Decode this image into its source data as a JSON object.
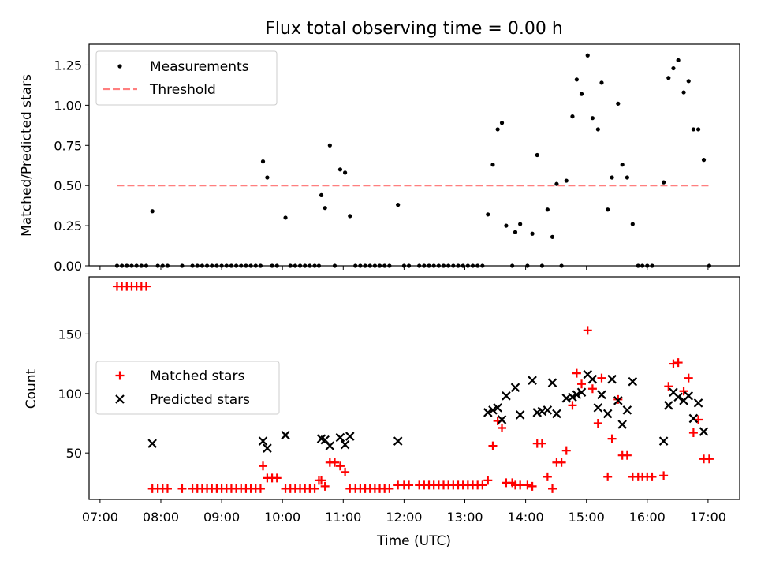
{
  "chart_data": {
    "type": "scatter",
    "title": "Flux total observing time = 0.00 h",
    "xlabel": "Time (UTC)",
    "x_unit": "decimal hours UTC",
    "xlim": [
      6.82,
      17.52
    ],
    "x_ticks": [
      {
        "v": 7,
        "label": "07:00"
      },
      {
        "v": 8,
        "label": "08:00"
      },
      {
        "v": 9,
        "label": "09:00"
      },
      {
        "v": 10,
        "label": "10:00"
      },
      {
        "v": 11,
        "label": "11:00"
      },
      {
        "v": 12,
        "label": "12:00"
      },
      {
        "v": 13,
        "label": "13:00"
      },
      {
        "v": 14,
        "label": "14:00"
      },
      {
        "v": 15,
        "label": "15:00"
      },
      {
        "v": 16,
        "label": "16:00"
      },
      {
        "v": 17,
        "label": "17:00"
      }
    ],
    "colors": {
      "measurement": "#000000",
      "threshold": "#ff7f7f",
      "matched": "#ff0000",
      "predicted": "#000000"
    },
    "top": {
      "ylabel": "Matched/Predicted stars",
      "ylim": [
        0,
        1.38
      ],
      "y_ticks": [
        {
          "v": 0,
          "label": "0.00"
        },
        {
          "v": 0.25,
          "label": "0.25"
        },
        {
          "v": 0.5,
          "label": "0.50"
        },
        {
          "v": 0.75,
          "label": "0.75"
        },
        {
          "v": 1.0,
          "label": "1.00"
        },
        {
          "v": 1.25,
          "label": "1.25"
        }
      ],
      "legend": {
        "position": "upper-left",
        "measurements": "Measurements",
        "threshold": "Threshold"
      },
      "threshold": {
        "value": 0.5,
        "x_range": [
          7.28,
          17.05
        ]
      },
      "measurements": [
        [
          7.28,
          0
        ],
        [
          7.36,
          0
        ],
        [
          7.44,
          0
        ],
        [
          7.52,
          0
        ],
        [
          7.6,
          0
        ],
        [
          7.68,
          0
        ],
        [
          7.76,
          0
        ],
        [
          7.86,
          0.34
        ],
        [
          7.95,
          0
        ],
        [
          8.03,
          0
        ],
        [
          8.11,
          0
        ],
        [
          8.35,
          0
        ],
        [
          8.52,
          0
        ],
        [
          8.6,
          0
        ],
        [
          8.68,
          0
        ],
        [
          8.76,
          0
        ],
        [
          8.84,
          0
        ],
        [
          8.92,
          0
        ],
        [
          9.0,
          0
        ],
        [
          9.08,
          0
        ],
        [
          9.16,
          0
        ],
        [
          9.24,
          0
        ],
        [
          9.32,
          0
        ],
        [
          9.4,
          0
        ],
        [
          9.48,
          0
        ],
        [
          9.56,
          0
        ],
        [
          9.64,
          0
        ],
        [
          9.68,
          0.65
        ],
        [
          9.75,
          0.55
        ],
        [
          9.83,
          0
        ],
        [
          9.91,
          0
        ],
        [
          10.05,
          0.3
        ],
        [
          10.13,
          0
        ],
        [
          10.21,
          0
        ],
        [
          10.29,
          0
        ],
        [
          10.37,
          0
        ],
        [
          10.45,
          0
        ],
        [
          10.53,
          0
        ],
        [
          10.6,
          0
        ],
        [
          10.64,
          0.44
        ],
        [
          10.7,
          0.36
        ],
        [
          10.78,
          0.75
        ],
        [
          10.86,
          0
        ],
        [
          10.95,
          0.6
        ],
        [
          11.03,
          0.58
        ],
        [
          11.11,
          0.31
        ],
        [
          11.2,
          0
        ],
        [
          11.28,
          0
        ],
        [
          11.36,
          0
        ],
        [
          11.44,
          0
        ],
        [
          11.52,
          0
        ],
        [
          11.6,
          0
        ],
        [
          11.68,
          0
        ],
        [
          11.76,
          0
        ],
        [
          11.9,
          0.38
        ],
        [
          12.0,
          0
        ],
        [
          12.08,
          0
        ],
        [
          12.25,
          0
        ],
        [
          12.33,
          0
        ],
        [
          12.41,
          0
        ],
        [
          12.49,
          0
        ],
        [
          12.57,
          0
        ],
        [
          12.65,
          0
        ],
        [
          12.73,
          0
        ],
        [
          12.81,
          0
        ],
        [
          12.89,
          0
        ],
        [
          12.97,
          0
        ],
        [
          13.05,
          0
        ],
        [
          13.13,
          0
        ],
        [
          13.21,
          0
        ],
        [
          13.29,
          0
        ],
        [
          13.38,
          0.32
        ],
        [
          13.46,
          0.63
        ],
        [
          13.54,
          0.85
        ],
        [
          13.61,
          0.89
        ],
        [
          13.68,
          0.25
        ],
        [
          13.78,
          0
        ],
        [
          13.83,
          0.21
        ],
        [
          13.91,
          0.26
        ],
        [
          14.03,
          0
        ],
        [
          14.11,
          0.2
        ],
        [
          14.19,
          0.69
        ],
        [
          14.27,
          0
        ],
        [
          14.36,
          0.35
        ],
        [
          14.44,
          0.18
        ],
        [
          14.51,
          0.51
        ],
        [
          14.59,
          0
        ],
        [
          14.67,
          0.53
        ],
        [
          14.77,
          0.93
        ],
        [
          14.84,
          1.16
        ],
        [
          14.92,
          1.07
        ],
        [
          15.02,
          1.31
        ],
        [
          15.1,
          0.92
        ],
        [
          15.19,
          0.85
        ],
        [
          15.25,
          1.14
        ],
        [
          15.35,
          0.35
        ],
        [
          15.42,
          0.55
        ],
        [
          15.52,
          1.01
        ],
        [
          15.59,
          0.63
        ],
        [
          15.67,
          0.55
        ],
        [
          15.76,
          0.26
        ],
        [
          15.85,
          0
        ],
        [
          15.92,
          0
        ],
        [
          16.0,
          0
        ],
        [
          16.08,
          0
        ],
        [
          16.27,
          0.52
        ],
        [
          16.35,
          1.17
        ],
        [
          16.43,
          1.23
        ],
        [
          16.51,
          1.28
        ],
        [
          16.6,
          1.08
        ],
        [
          16.68,
          1.15
        ],
        [
          16.76,
          0.85
        ],
        [
          16.84,
          0.85
        ],
        [
          16.93,
          0.66
        ],
        [
          17.02,
          0
        ]
      ]
    },
    "bottom": {
      "ylabel": "Count",
      "ylim": [
        11,
        198
      ],
      "y_ticks": [
        {
          "v": 50,
          "label": "50"
        },
        {
          "v": 100,
          "label": "100"
        },
        {
          "v": 150,
          "label": "150"
        }
      ],
      "legend": {
        "position": "center-left",
        "matched": "Matched stars",
        "predicted": "Predicted stars"
      },
      "matched": [
        [
          7.28,
          190
        ],
        [
          7.36,
          190
        ],
        [
          7.44,
          190
        ],
        [
          7.52,
          190
        ],
        [
          7.6,
          190
        ],
        [
          7.68,
          190
        ],
        [
          7.76,
          190
        ],
        [
          7.86,
          20
        ],
        [
          7.95,
          20
        ],
        [
          8.03,
          20
        ],
        [
          8.11,
          20
        ],
        [
          8.35,
          20
        ],
        [
          8.52,
          20
        ],
        [
          8.6,
          20
        ],
        [
          8.68,
          20
        ],
        [
          8.76,
          20
        ],
        [
          8.84,
          20
        ],
        [
          8.92,
          20
        ],
        [
          9.0,
          20
        ],
        [
          9.08,
          20
        ],
        [
          9.16,
          20
        ],
        [
          9.24,
          20
        ],
        [
          9.32,
          20
        ],
        [
          9.4,
          20
        ],
        [
          9.48,
          20
        ],
        [
          9.56,
          20
        ],
        [
          9.64,
          20
        ],
        [
          9.68,
          39
        ],
        [
          9.75,
          29
        ],
        [
          9.83,
          29
        ],
        [
          9.91,
          29
        ],
        [
          10.05,
          20
        ],
        [
          10.13,
          20
        ],
        [
          10.21,
          20
        ],
        [
          10.29,
          20
        ],
        [
          10.37,
          20
        ],
        [
          10.45,
          20
        ],
        [
          10.53,
          20
        ],
        [
          10.6,
          27
        ],
        [
          10.64,
          27
        ],
        [
          10.7,
          22
        ],
        [
          10.78,
          42
        ],
        [
          10.86,
          42
        ],
        [
          10.95,
          39
        ],
        [
          11.03,
          34
        ],
        [
          11.11,
          20
        ],
        [
          11.2,
          20
        ],
        [
          11.28,
          20
        ],
        [
          11.36,
          20
        ],
        [
          11.44,
          20
        ],
        [
          11.52,
          20
        ],
        [
          11.6,
          20
        ],
        [
          11.68,
          20
        ],
        [
          11.76,
          20
        ],
        [
          11.9,
          23
        ],
        [
          12.0,
          23
        ],
        [
          12.08,
          23
        ],
        [
          12.25,
          23
        ],
        [
          12.33,
          23
        ],
        [
          12.41,
          23
        ],
        [
          12.49,
          23
        ],
        [
          12.57,
          23
        ],
        [
          12.65,
          23
        ],
        [
          12.73,
          23
        ],
        [
          12.81,
          23
        ],
        [
          12.89,
          23
        ],
        [
          12.97,
          23
        ],
        [
          13.05,
          23
        ],
        [
          13.13,
          23
        ],
        [
          13.21,
          23
        ],
        [
          13.29,
          23
        ],
        [
          13.38,
          27
        ],
        [
          13.46,
          56
        ],
        [
          13.54,
          77
        ],
        [
          13.61,
          71
        ],
        [
          13.68,
          25
        ],
        [
          13.78,
          25
        ],
        [
          13.83,
          23
        ],
        [
          13.91,
          23
        ],
        [
          14.03,
          23
        ],
        [
          14.11,
          22
        ],
        [
          14.19,
          58
        ],
        [
          14.27,
          58
        ],
        [
          14.36,
          30
        ],
        [
          14.44,
          20
        ],
        [
          14.51,
          42
        ],
        [
          14.59,
          42
        ],
        [
          14.67,
          52
        ],
        [
          14.77,
          90
        ],
        [
          14.84,
          117
        ],
        [
          14.92,
          108
        ],
        [
          15.02,
          153
        ],
        [
          15.1,
          104
        ],
        [
          15.19,
          75
        ],
        [
          15.25,
          113
        ],
        [
          15.35,
          30
        ],
        [
          15.42,
          62
        ],
        [
          15.52,
          95
        ],
        [
          15.59,
          48
        ],
        [
          15.67,
          48
        ],
        [
          15.76,
          30
        ],
        [
          15.85,
          30
        ],
        [
          15.92,
          30
        ],
        [
          16.0,
          30
        ],
        [
          16.08,
          30
        ],
        [
          16.27,
          31
        ],
        [
          16.35,
          106
        ],
        [
          16.43,
          125
        ],
        [
          16.51,
          126
        ],
        [
          16.6,
          102
        ],
        [
          16.68,
          113
        ],
        [
          16.76,
          67
        ],
        [
          16.84,
          78
        ],
        [
          16.93,
          45
        ],
        [
          17.02,
          45
        ]
      ],
      "predicted": [
        [
          7.86,
          58
        ],
        [
          9.68,
          60
        ],
        [
          9.75,
          54
        ],
        [
          10.05,
          65
        ],
        [
          10.64,
          62
        ],
        [
          10.7,
          61
        ],
        [
          10.78,
          56
        ],
        [
          10.95,
          63
        ],
        [
          11.03,
          57
        ],
        [
          11.11,
          64
        ],
        [
          11.9,
          60
        ],
        [
          13.38,
          84
        ],
        [
          13.46,
          86
        ],
        [
          13.54,
          88
        ],
        [
          13.61,
          78
        ],
        [
          13.68,
          98
        ],
        [
          13.83,
          105
        ],
        [
          13.91,
          82
        ],
        [
          14.11,
          111
        ],
        [
          14.19,
          84
        ],
        [
          14.27,
          85
        ],
        [
          14.36,
          86
        ],
        [
          14.44,
          109
        ],
        [
          14.51,
          83
        ],
        [
          14.67,
          96
        ],
        [
          14.77,
          97
        ],
        [
          14.84,
          99
        ],
        [
          14.92,
          101
        ],
        [
          15.02,
          116
        ],
        [
          15.1,
          112
        ],
        [
          15.19,
          88
        ],
        [
          15.25,
          99
        ],
        [
          15.35,
          83
        ],
        [
          15.42,
          112
        ],
        [
          15.52,
          94
        ],
        [
          15.59,
          74
        ],
        [
          15.67,
          86
        ],
        [
          15.76,
          110
        ],
        [
          16.27,
          60
        ],
        [
          16.35,
          90
        ],
        [
          16.43,
          101
        ],
        [
          16.51,
          97
        ],
        [
          16.6,
          94
        ],
        [
          16.68,
          98
        ],
        [
          16.76,
          79
        ],
        [
          16.84,
          92
        ],
        [
          16.93,
          68
        ]
      ]
    }
  }
}
